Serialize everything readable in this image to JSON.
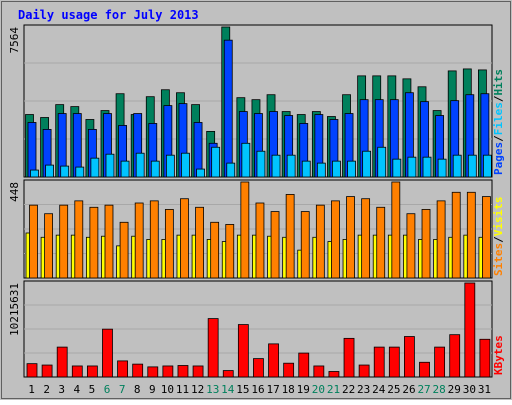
{
  "chart_data": [
    {
      "type": "bar",
      "title": "Daily usage for July 2013",
      "ymax_label": "7564",
      "ylim": [
        0,
        7564
      ],
      "legend": [
        {
          "name": "Pages",
          "color": "#0042ff"
        },
        {
          "name": "Files",
          "color": "#00c4ff"
        },
        {
          "name": "Hits",
          "color": "#00805c"
        }
      ],
      "legend_separator": "/",
      "categories": [
        "1",
        "2",
        "3",
        "4",
        "5",
        "6",
        "7",
        "8",
        "9",
        "10",
        "11",
        "12",
        "13",
        "14",
        "15",
        "16",
        "17",
        "18",
        "19",
        "20",
        "21",
        "22",
        "23",
        "24",
        "25",
        "26",
        "27",
        "28",
        "29",
        "30",
        "31"
      ],
      "weekend_days": [
        "6",
        "7",
        "13",
        "14",
        "20",
        "21",
        "27",
        "28"
      ],
      "series": [
        {
          "name": "Hits",
          "values": [
            3150,
            3000,
            3650,
            3550,
            2900,
            3350,
            4200,
            3150,
            4050,
            4400,
            4250,
            3650,
            2300,
            7564,
            4000,
            3900,
            4150,
            3300,
            3150,
            3300,
            3050,
            4150,
            5100,
            5100,
            5100,
            4950,
            4550,
            3350,
            5350,
            5450,
            5400
          ]
        },
        {
          "name": "Pages",
          "values": [
            2750,
            2400,
            3200,
            3200,
            2400,
            3200,
            2600,
            3200,
            2700,
            3600,
            3700,
            2750,
            1700,
            6900,
            3300,
            3200,
            3300,
            3100,
            2700,
            3150,
            2900,
            3200,
            3900,
            3900,
            3900,
            4250,
            3800,
            3100,
            3850,
            4150,
            4200
          ]
        },
        {
          "name": "Files",
          "values": [
            350,
            600,
            550,
            500,
            950,
            1150,
            800,
            1200,
            800,
            1100,
            1200,
            400,
            1500,
            700,
            1700,
            1300,
            1100,
            1100,
            800,
            700,
            800,
            800,
            1300,
            1500,
            900,
            1000,
            1000,
            900,
            1100,
            1100,
            1100
          ]
        }
      ]
    },
    {
      "type": "bar",
      "ymax_label": "448",
      "ylim": [
        0,
        448
      ],
      "legend": [
        {
          "name": "Sites",
          "color": "#ff8000"
        },
        {
          "name": "Visits",
          "color": "#ffff00"
        }
      ],
      "legend_separator": "/",
      "categories": [
        "1",
        "2",
        "3",
        "4",
        "5",
        "6",
        "7",
        "8",
        "9",
        "10",
        "11",
        "12",
        "13",
        "14",
        "15",
        "16",
        "17",
        "18",
        "19",
        "20",
        "21",
        "22",
        "23",
        "24",
        "25",
        "26",
        "27",
        "28",
        "29",
        "30",
        "31"
      ],
      "series": [
        {
          "name": "Visits",
          "values": [
            210,
            190,
            200,
            200,
            190,
            195,
            150,
            195,
            180,
            180,
            200,
            200,
            180,
            170,
            200,
            200,
            195,
            190,
            130,
            190,
            170,
            180,
            200,
            200,
            200,
            200,
            180,
            180,
            190,
            200,
            190
          ]
        },
        {
          "name": "Sites",
          "values": [
            340,
            300,
            340,
            360,
            330,
            340,
            260,
            350,
            360,
            320,
            370,
            330,
            260,
            250,
            448,
            350,
            310,
            390,
            310,
            340,
            360,
            380,
            370,
            330,
            448,
            300,
            320,
            360,
            400,
            400,
            380
          ]
        }
      ]
    },
    {
      "type": "bar",
      "ymax_label": "10215631",
      "ylim": [
        0,
        10215631
      ],
      "legend": [
        {
          "name": "KBytes",
          "color": "#ff0000"
        }
      ],
      "categories": [
        "1",
        "2",
        "3",
        "4",
        "5",
        "6",
        "7",
        "8",
        "9",
        "10",
        "11",
        "12",
        "13",
        "14",
        "15",
        "16",
        "17",
        "18",
        "19",
        "20",
        "21",
        "22",
        "23",
        "24",
        "25",
        "26",
        "27",
        "28",
        "29",
        "30",
        "31"
      ],
      "series": [
        {
          "name": "KBytes",
          "values": [
            1450000,
            1300000,
            3250000,
            1200000,
            1200000,
            5200000,
            1750000,
            1400000,
            1100000,
            1200000,
            1250000,
            1200000,
            6350000,
            700000,
            5700000,
            2000000,
            3600000,
            1500000,
            2600000,
            1200000,
            600000,
            4200000,
            1300000,
            3250000,
            3250000,
            4400000,
            1600000,
            3250000,
            4600000,
            10215631,
            4100000
          ]
        }
      ]
    }
  ]
}
